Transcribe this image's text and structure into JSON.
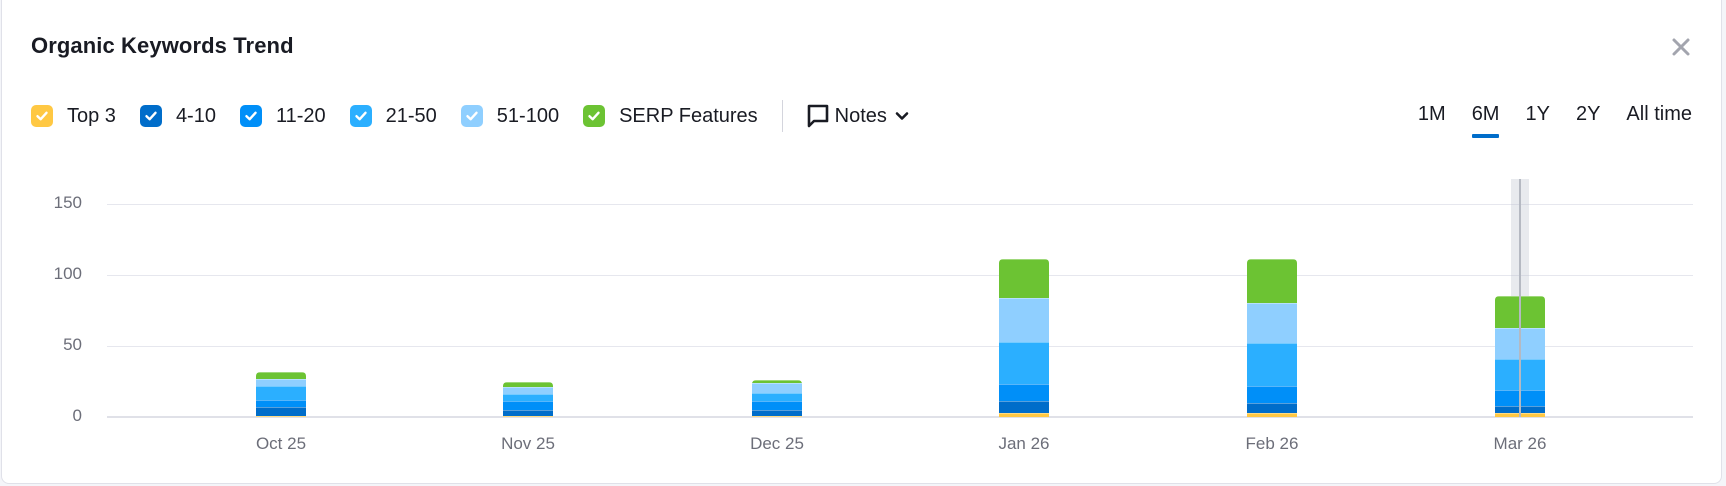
{
  "header": {
    "title": "Organic Keywords Trend",
    "close_icon": "close-icon"
  },
  "legend": [
    {
      "label": "Top 3",
      "color": "#ffc843",
      "checked": true
    },
    {
      "label": "4-10",
      "color": "#006dca",
      "checked": true
    },
    {
      "label": "11-20",
      "color": "#008ff8",
      "checked": true
    },
    {
      "label": "21-50",
      "color": "#2bafff",
      "checked": true
    },
    {
      "label": "51-100",
      "color": "#8fcfff",
      "checked": true
    },
    {
      "label": "SERP Features",
      "color": "#6cc333",
      "checked": true
    }
  ],
  "notes": {
    "label": "Notes",
    "icon": "comment-icon",
    "chevron": "chevron-down-icon"
  },
  "ranges": [
    {
      "label": "1M",
      "active": false
    },
    {
      "label": "6M",
      "active": true
    },
    {
      "label": "1Y",
      "active": false
    },
    {
      "label": "2Y",
      "active": false
    },
    {
      "label": "All time",
      "active": false
    }
  ],
  "colors": {
    "accent": "#006dca",
    "grid": "#e6e7ee",
    "axis_text": "#6c6e79"
  },
  "chart_data": {
    "type": "bar",
    "stacked": true,
    "title": "Organic Keywords Trend",
    "xlabel": "",
    "ylabel": "",
    "ylim": [
      0,
      150
    ],
    "yticks": [
      0,
      50,
      100,
      150
    ],
    "grid": true,
    "legend_position": "top",
    "categories": [
      "Oct 25",
      "Nov 25",
      "Dec 25",
      "Jan 26",
      "Feb 26",
      "Mar 26"
    ],
    "series": [
      {
        "name": "Top 3",
        "color": "#ffc843",
        "values": [
          1,
          1,
          1,
          3,
          3,
          3
        ]
      },
      {
        "name": "4-10",
        "color": "#006dca",
        "values": [
          6,
          4,
          4,
          8,
          7,
          5
        ]
      },
      {
        "name": "11-20",
        "color": "#008ff8",
        "values": [
          5,
          6,
          6,
          12,
          12,
          11
        ]
      },
      {
        "name": "21-50",
        "color": "#2bafff",
        "values": [
          10,
          5,
          6,
          30,
          30,
          22
        ]
      },
      {
        "name": "51-100",
        "color": "#8fcfff",
        "values": [
          5,
          5,
          7,
          31,
          28,
          22
        ]
      },
      {
        "name": "SERP Features",
        "color": "#6cc333",
        "values": [
          5,
          4,
          2,
          27,
          31,
          22
        ]
      }
    ],
    "totals": [
      32,
      25,
      26,
      111,
      111,
      85
    ],
    "highlighted_category": "Mar 26"
  }
}
